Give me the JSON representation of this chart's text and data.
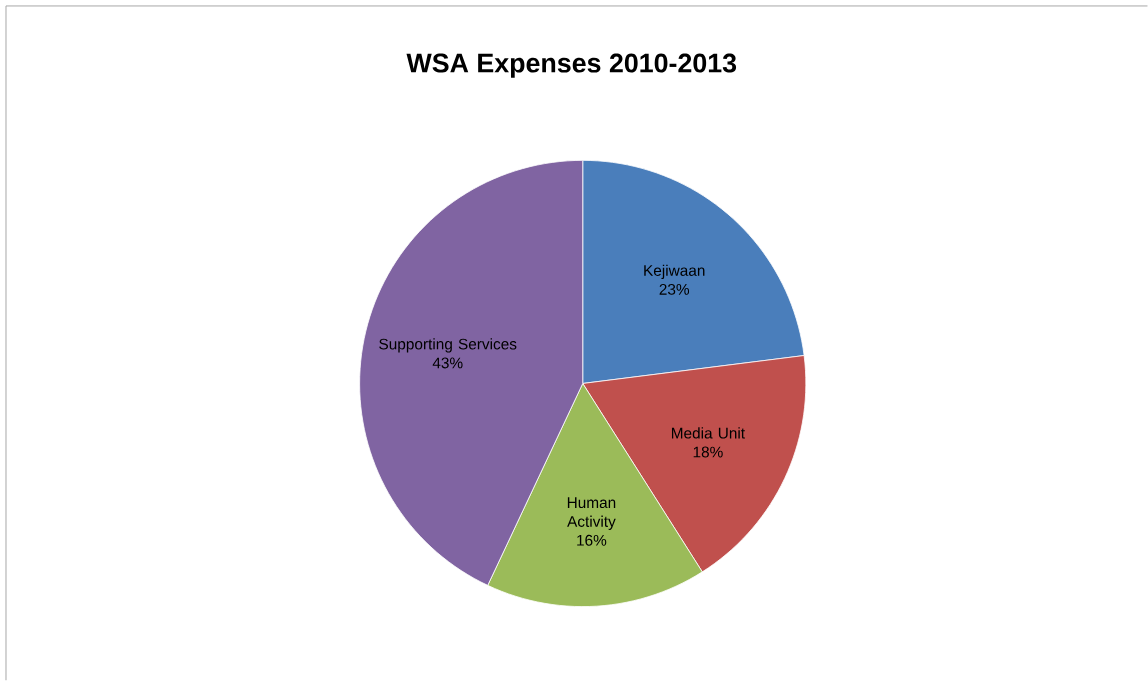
{
  "chart_data": {
    "type": "pie",
    "title": "WSA Expenses 2010-2013",
    "categories": [
      "Kejiwaan",
      "Media Unit",
      "Human Activity",
      "Supporting Services"
    ],
    "values": [
      23,
      18,
      16,
      43
    ],
    "value_labels": [
      "23%",
      "18%",
      "16%",
      "43%"
    ],
    "colors": [
      "#4a7ebb",
      "#c0504d",
      "#9bbb59",
      "#8064a2"
    ]
  }
}
